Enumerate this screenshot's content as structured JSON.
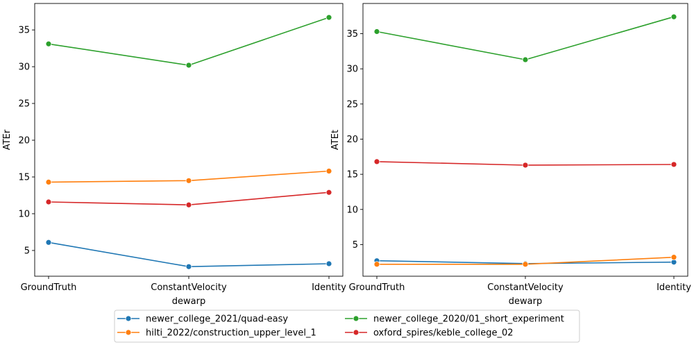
{
  "chart_data": [
    {
      "type": "line",
      "categories": [
        "GroundTruth",
        "ConstantVelocity",
        "Identity"
      ],
      "xlabel": "dewarp",
      "ylabel": "ATEr",
      "ylim": [
        1.5,
        38.6
      ],
      "yticks": [
        5,
        10,
        15,
        20,
        25,
        30,
        35
      ],
      "series": [
        {
          "name": "newer_college_2021/quad-easy",
          "color": "#1f77b4",
          "values": [
            6.1,
            2.8,
            3.2
          ]
        },
        {
          "name": "hilti_2022/construction_upper_level_1",
          "color": "#ff7f0e",
          "values": [
            14.3,
            14.5,
            15.8
          ]
        },
        {
          "name": "newer_college_2020/01_short_experiment",
          "color": "#2ca02c",
          "values": [
            33.1,
            30.2,
            36.7
          ]
        },
        {
          "name": "oxford_spires/keble_college_02",
          "color": "#d62728",
          "values": [
            11.6,
            11.2,
            12.9
          ]
        }
      ]
    },
    {
      "type": "line",
      "categories": [
        "GroundTruth",
        "ConstantVelocity",
        "Identity"
      ],
      "xlabel": "dewarp",
      "ylabel": "ATEt",
      "ylim": [
        0.5,
        39.3
      ],
      "yticks": [
        5,
        10,
        15,
        20,
        25,
        30,
        35
      ],
      "series": [
        {
          "name": "newer_college_2021/quad-easy",
          "color": "#1f77b4",
          "values": [
            2.7,
            2.3,
            2.5
          ]
        },
        {
          "name": "hilti_2022/construction_upper_level_1",
          "color": "#ff7f0e",
          "values": [
            2.2,
            2.2,
            3.2
          ]
        },
        {
          "name": "newer_college_2020/01_short_experiment",
          "color": "#2ca02c",
          "values": [
            35.3,
            31.3,
            37.4
          ]
        },
        {
          "name": "oxford_spires/keble_college_02",
          "color": "#d62728",
          "values": [
            16.8,
            16.3,
            16.4
          ]
        }
      ]
    }
  ],
  "legend": {
    "placement": "bottom-center",
    "columns": 2,
    "entries": [
      "newer_college_2021/quad-easy",
      "hilti_2022/construction_upper_level_1",
      "newer_college_2020/01_short_experiment",
      "oxford_spires/keble_college_02"
    ]
  }
}
